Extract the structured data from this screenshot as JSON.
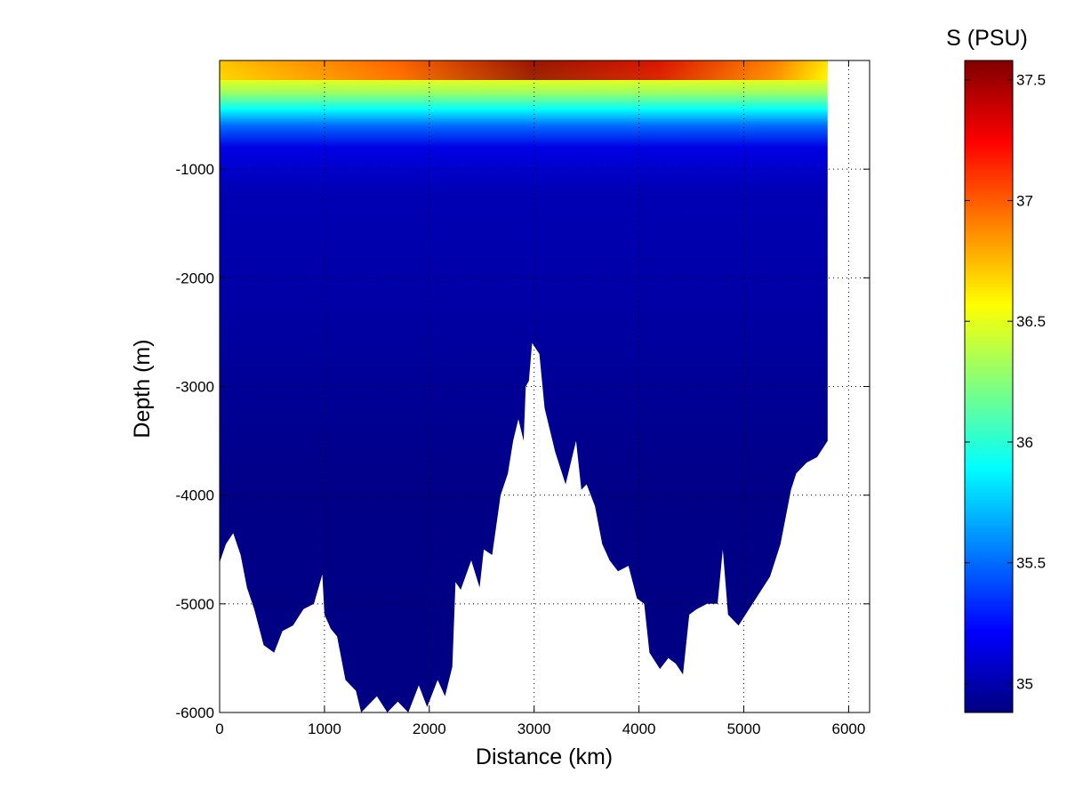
{
  "chart_data": {
    "type": "heatmap",
    "title": "",
    "xlabel": "Distance (km)",
    "ylabel": "Depth (m)",
    "xlim": [
      0,
      6200
    ],
    "ylim": [
      -6000,
      0
    ],
    "xticks": [
      0,
      1000,
      2000,
      3000,
      4000,
      5000,
      6000
    ],
    "yticks": [
      -1000,
      -2000,
      -3000,
      -4000,
      -5000,
      -6000
    ],
    "grid": true,
    "section_extent_km": 5800,
    "colorbar": {
      "label": "S (PSU)",
      "range": [
        34.88,
        37.58
      ],
      "ticks": [
        35,
        35.5,
        36,
        36.5,
        37,
        37.5
      ],
      "colormap": "jet",
      "colormap_stops": [
        "#00008f",
        "#0000ff",
        "#00ffff",
        "#ffff00",
        "#ff0000",
        "#800000"
      ]
    },
    "salinity_profile": [
      {
        "depth": 0,
        "value": 36.9
      },
      {
        "depth": -150,
        "value": 36.55
      },
      {
        "depth": -300,
        "value": 36.3
      },
      {
        "depth": -450,
        "value": 35.9
      },
      {
        "depth": -600,
        "value": 35.5
      },
      {
        "depth": -800,
        "value": 35.15
      },
      {
        "depth": -1200,
        "value": 35.02
      },
      {
        "depth": -2000,
        "value": 34.99
      },
      {
        "depth": -3000,
        "value": 34.94
      },
      {
        "depth": -4000,
        "value": 34.9
      },
      {
        "depth": -6000,
        "value": 34.89
      }
    ],
    "surface_max": [
      {
        "x": 1700,
        "value": 37.0
      },
      {
        "x": 3000,
        "value": 37.55
      },
      {
        "x": 4200,
        "value": 37.35
      },
      {
        "x": 5300,
        "value": 36.9
      }
    ],
    "bottom_profile": [
      [
        0,
        -4620
      ],
      [
        60,
        -4450
      ],
      [
        130,
        -4350
      ],
      [
        200,
        -4550
      ],
      [
        260,
        -4850
      ],
      [
        330,
        -5050
      ],
      [
        420,
        -5380
      ],
      [
        520,
        -5450
      ],
      [
        600,
        -5250
      ],
      [
        700,
        -5200
      ],
      [
        800,
        -5050
      ],
      [
        900,
        -5000
      ],
      [
        980,
        -4730
      ],
      [
        1000,
        -5100
      ],
      [
        1060,
        -5230
      ],
      [
        1120,
        -5300
      ],
      [
        1200,
        -5700
      ],
      [
        1300,
        -5800
      ],
      [
        1350,
        -6000
      ],
      [
        1500,
        -5850
      ],
      [
        1600,
        -6000
      ],
      [
        1700,
        -5900
      ],
      [
        1800,
        -6000
      ],
      [
        1900,
        -5750
      ],
      [
        1980,
        -5950
      ],
      [
        2080,
        -5700
      ],
      [
        2150,
        -5850
      ],
      [
        2220,
        -5580
      ],
      [
        2250,
        -4800
      ],
      [
        2300,
        -4870
      ],
      [
        2400,
        -4600
      ],
      [
        2480,
        -4850
      ],
      [
        2520,
        -4500
      ],
      [
        2600,
        -4550
      ],
      [
        2680,
        -4000
      ],
      [
        2750,
        -3800
      ],
      [
        2800,
        -3500
      ],
      [
        2850,
        -3300
      ],
      [
        2900,
        -3500
      ],
      [
        2920,
        -3000
      ],
      [
        2950,
        -2950
      ],
      [
        2980,
        -2600
      ],
      [
        3050,
        -2700
      ],
      [
        3100,
        -3200
      ],
      [
        3150,
        -3400
      ],
      [
        3200,
        -3600
      ],
      [
        3300,
        -3900
      ],
      [
        3400,
        -3500
      ],
      [
        3450,
        -3950
      ],
      [
        3500,
        -3900
      ],
      [
        3580,
        -4100
      ],
      [
        3650,
        -4450
      ],
      [
        3720,
        -4600
      ],
      [
        3800,
        -4700
      ],
      [
        3900,
        -4650
      ],
      [
        3980,
        -4950
      ],
      [
        4050,
        -5000
      ],
      [
        4100,
        -5450
      ],
      [
        4200,
        -5600
      ],
      [
        4280,
        -5500
      ],
      [
        4350,
        -5550
      ],
      [
        4420,
        -5650
      ],
      [
        4480,
        -5100
      ],
      [
        4550,
        -5050
      ],
      [
        4650,
        -5000
      ],
      [
        4750,
        -5000
      ],
      [
        4800,
        -4500
      ],
      [
        4850,
        -5100
      ],
      [
        4950,
        -5200
      ],
      [
        5050,
        -5050
      ],
      [
        5150,
        -4900
      ],
      [
        5250,
        -4750
      ],
      [
        5350,
        -4450
      ],
      [
        5400,
        -4200
      ],
      [
        5450,
        -3950
      ],
      [
        5500,
        -3800
      ],
      [
        5600,
        -3700
      ],
      [
        5700,
        -3650
      ],
      [
        5800,
        -3500
      ]
    ]
  }
}
